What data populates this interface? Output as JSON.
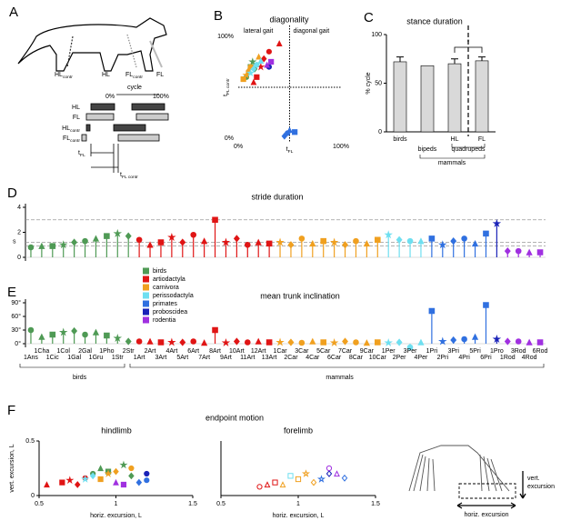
{
  "diagram_a": {
    "label": "A",
    "limbs": [
      {
        "main": "HL",
        "sub": "contr"
      },
      {
        "main": "HL"
      },
      {
        "main": "FL",
        "sub": "contr"
      },
      {
        "main": "FL"
      }
    ],
    "cycle": "cycle",
    "cycle_start": "0%",
    "cycle_end": "100%",
    "rows": [
      {
        "main": "HL"
      },
      {
        "main": "FL"
      },
      {
        "main": "HL",
        "sub": "contr"
      },
      {
        "main": "FL",
        "sub": "contr"
      }
    ],
    "t_fl": {
      "main": "t",
      "sub": "FL"
    },
    "t_fl_contr": {
      "main": "t",
      "sub": "FL contr"
    }
  },
  "panel_f": {
    "label": "F",
    "title": "endpoint motion",
    "vert_excursion": [
      "vert.",
      "excursion"
    ],
    "horiz_excursion": "horiz. excursion"
  },
  "chart_data": [
    {
      "type": "scatter",
      "panel": "B",
      "title": "diagonality",
      "xlabel": {
        "main": "t",
        "sub": "FL"
      },
      "ylabel": {
        "main": "t",
        "sub": "FL contr"
      },
      "annotations": [
        "lateral gait",
        "diagonal gait"
      ],
      "xlim": [
        0,
        100
      ],
      "ylim": [
        0,
        100
      ],
      "xticks": [
        {
          "value": 0,
          "label": "0%"
        },
        {
          "value": 100,
          "label": "100%"
        }
      ],
      "yticks": [
        {
          "value": 0,
          "label": "0%"
        },
        {
          "value": 100,
          "label": "100%"
        }
      ],
      "xline": 50,
      "yline": 50,
      "axes": false,
      "filled": true,
      "series": [
        {
          "name": "birds",
          "color": "#4f9a55",
          "x": [
            8,
            10,
            12,
            14,
            16,
            18
          ],
          "y": [
            60,
            65,
            70,
            75,
            68,
            72
          ]
        },
        {
          "name": "artiodactyla",
          "color": "#e01515",
          "x": [
            15,
            18,
            22,
            25,
            30,
            40
          ],
          "y": [
            55,
            60,
            70,
            78,
            85,
            93
          ]
        },
        {
          "name": "carnivora",
          "color": "#f0a020",
          "x": [
            5,
            8,
            10,
            12,
            20
          ],
          "y": [
            58,
            62,
            66,
            70,
            80
          ]
        },
        {
          "name": "perissodactyla",
          "color": "#6fdff0",
          "x": [
            12,
            15,
            18,
            22
          ],
          "y": [
            64,
            68,
            72,
            76
          ]
        },
        {
          "name": "primates",
          "color": "#3070e0",
          "x": [
            45,
            48,
            50,
            55
          ],
          "y": [
            2,
            5,
            8,
            6
          ]
        },
        {
          "name": "proboscidea",
          "color": "#1a22b8",
          "x": [
            30
          ],
          "y": [
            70
          ]
        },
        {
          "name": "rodentia",
          "color": "#a030e0",
          "x": [
            28,
            32
          ],
          "y": [
            72,
            75
          ]
        }
      ]
    },
    {
      "type": "bar",
      "panel": "C",
      "title": "stance duration",
      "ylabel": "% cycle",
      "categories": [
        "birds",
        "bipeds",
        "HL",
        "FL"
      ],
      "values": [
        72,
        68,
        70,
        73
      ],
      "errors": [
        5,
        null,
        5,
        4
      ],
      "color": "#d9d9d9",
      "group_labels": [
        "quadrupeds",
        "mammals"
      ],
      "significance": "*",
      "ylim": [
        0,
        100
      ],
      "yticks": [
        0,
        50,
        100
      ]
    },
    {
      "type": "stem",
      "panel": "D",
      "title": "stride duration",
      "ylabel": "s",
      "ylim": [
        0,
        4
      ],
      "yticks": [
        0,
        2,
        4
      ],
      "reference_lines": [
        3,
        1.2,
        0.9
      ],
      "series": [
        {
          "name": "birds",
          "color": "#4f9a55",
          "values": [
            0.8,
            0.9,
            0.9,
            1.0,
            1.2,
            1.3,
            1.5,
            1.7,
            1.9,
            1.7
          ]
        },
        {
          "name": "artiodactyla",
          "color": "#e01515",
          "values": [
            1.4,
            1.0,
            1.2,
            1.6,
            1.2,
            1.8,
            1.3,
            3.0,
            1.2,
            1.5,
            1.0,
            1.2,
            1.1
          ]
        },
        {
          "name": "carnivora",
          "color": "#f0a020",
          "values": [
            1.2,
            1.0,
            1.5,
            1.1,
            1.3,
            1.2,
            1.0,
            1.3,
            1.1,
            1.4
          ]
        },
        {
          "name": "perissodactyla",
          "color": "#6fdff0",
          "values": [
            1.8,
            1.4,
            1.3,
            1.3
          ]
        },
        {
          "name": "primates",
          "color": "#3070e0",
          "values": [
            1.5,
            1.0,
            1.3,
            1.5,
            1.1,
            1.9
          ]
        },
        {
          "name": "proboscidea",
          "color": "#1a22b8",
          "values": [
            2.7
          ]
        },
        {
          "name": "rodentia",
          "color": "#a030e0",
          "values": [
            0.5,
            0.5,
            0.4,
            0.4
          ]
        }
      ]
    },
    {
      "type": "stem",
      "panel": "E",
      "title": "mean trunk inclination",
      "ylim": [
        0,
        90
      ],
      "yticks": [
        {
          "value": 0,
          "label": "0°"
        },
        {
          "value": 30,
          "label": "30°"
        },
        {
          "value": 60,
          "label": "60°"
        },
        {
          "value": 90,
          "label": "90°"
        }
      ],
      "group_labels": [
        "birds",
        "mammals"
      ],
      "legend": true,
      "series": [
        {
          "name": "birds",
          "color": "#4f9a55",
          "categories": [
            "1Ans",
            "1Cha",
            "1Cic",
            "1Col",
            "1Gal",
            "2Gal",
            "1Gru",
            "1Pho",
            "1Str",
            "2Str"
          ],
          "values": [
            30,
            15,
            20,
            25,
            28,
            20,
            25,
            18,
            12,
            5
          ]
        },
        {
          "name": "artiodactyla",
          "color": "#e01515",
          "categories": [
            "1Art",
            "2Art",
            "3Art",
            "4Art",
            "5Art",
            "6Art",
            "7Art",
            "8Art",
            "9Art",
            "10Art",
            "11Art",
            "12Art",
            "13Art"
          ],
          "values": [
            5,
            5,
            3,
            3,
            3,
            5,
            2,
            30,
            2,
            5,
            3,
            5,
            3
          ]
        },
        {
          "name": "carnivora",
          "color": "#f0a020",
          "categories": [
            "1Car",
            "2Car",
            "3Car",
            "4Car",
            "5Car",
            "6Car",
            "7Car",
            "8Car",
            "9Car",
            "10Car"
          ],
          "values": [
            3,
            3,
            2,
            5,
            3,
            2,
            5,
            3,
            2,
            3
          ]
        },
        {
          "name": "perissodactyla",
          "color": "#6fdff0",
          "categories": [
            "1Per",
            "2Per",
            "3Per",
            "4Per"
          ],
          "values": [
            2,
            3,
            -8,
            3
          ]
        },
        {
          "name": "primates",
          "color": "#3070e0",
          "categories": [
            "1Pri",
            "2Pri",
            "3Pri",
            "4Pri",
            "5Pri",
            "6Pri"
          ],
          "values": [
            72,
            5,
            8,
            10,
            15,
            85
          ]
        },
        {
          "name": "proboscidea",
          "color": "#1a22b8",
          "categories": [
            "1Pro"
          ],
          "values": [
            10
          ]
        },
        {
          "name": "rodentia",
          "color": "#a030e0",
          "categories": [
            "1Rod",
            "3Rod",
            "4Rod",
            "6Rod"
          ],
          "values": [
            5,
            5,
            3,
            3
          ]
        }
      ]
    },
    {
      "type": "scatter",
      "title": "hindlimb",
      "xlabel": "horiz. excursion, L",
      "ylabel": "vert. excursion, L",
      "xlim": [
        0.5,
        1.5
      ],
      "ylim": [
        0,
        0.5
      ],
      "xticks": [
        0.5,
        1,
        1.5
      ],
      "yticks": [
        0,
        0.5
      ],
      "axes": true,
      "filled": true,
      "series": [
        {
          "name": "birds",
          "color": "#4f9a55",
          "x": [
            0.85,
            0.9,
            0.95,
            1.05,
            1.1
          ],
          "y": [
            0.2,
            0.25,
            0.22,
            0.28,
            0.18
          ]
        },
        {
          "name": "artiodactyla",
          "color": "#e01515",
          "x": [
            0.55,
            0.65,
            0.7,
            0.75,
            0.8
          ],
          "y": [
            0.1,
            0.12,
            0.14,
            0.1,
            0.16
          ]
        },
        {
          "name": "carnivora",
          "color": "#f0a020",
          "x": [
            0.9,
            0.95,
            1.0,
            1.1
          ],
          "y": [
            0.15,
            0.2,
            0.22,
            0.25
          ]
        },
        {
          "name": "perissodactyla",
          "color": "#6fdff0",
          "x": [
            0.8,
            0.85
          ],
          "y": [
            0.15,
            0.18
          ]
        },
        {
          "name": "primates",
          "color": "#3070e0",
          "x": [
            1.15,
            1.2
          ],
          "y": [
            0.12,
            0.14
          ]
        },
        {
          "name": "proboscidea",
          "color": "#1a22b8",
          "x": [
            1.2
          ],
          "y": [
            0.2
          ]
        },
        {
          "name": "rodentia",
          "color": "#a030e0",
          "x": [
            1.0,
            1.05
          ],
          "y": [
            0.12,
            0.1
          ]
        }
      ]
    },
    {
      "type": "scatter",
      "title": "forelimb",
      "xlabel": "horiz. excursion, L",
      "xlim": [
        0.5,
        1.5
      ],
      "ylim": [
        0,
        0.5
      ],
      "xticks": [
        0.5,
        1,
        1.5
      ],
      "axes": true,
      "filled": false,
      "series": [
        {
          "name": "artiodactyla",
          "color": "#e01515",
          "x": [
            0.75,
            0.8,
            0.85
          ],
          "y": [
            0.08,
            0.1,
            0.12
          ]
        },
        {
          "name": "carnivora",
          "color": "#f0a020",
          "x": [
            0.9,
            1.0,
            1.05,
            1.1
          ],
          "y": [
            0.1,
            0.15,
            0.2,
            0.12
          ]
        },
        {
          "name": "perissodactyla",
          "color": "#6fdff0",
          "x": [
            0.95
          ],
          "y": [
            0.18
          ]
        },
        {
          "name": "primates",
          "color": "#3070e0",
          "x": [
            1.15,
            1.3
          ],
          "y": [
            0.15,
            0.16
          ]
        },
        {
          "name": "proboscidea",
          "color": "#1a22b8",
          "x": [
            1.2
          ],
          "y": [
            0.2
          ]
        },
        {
          "name": "rodentia",
          "color": "#a030e0",
          "x": [
            1.2,
            1.25
          ],
          "y": [
            0.25,
            0.2
          ]
        }
      ]
    }
  ]
}
